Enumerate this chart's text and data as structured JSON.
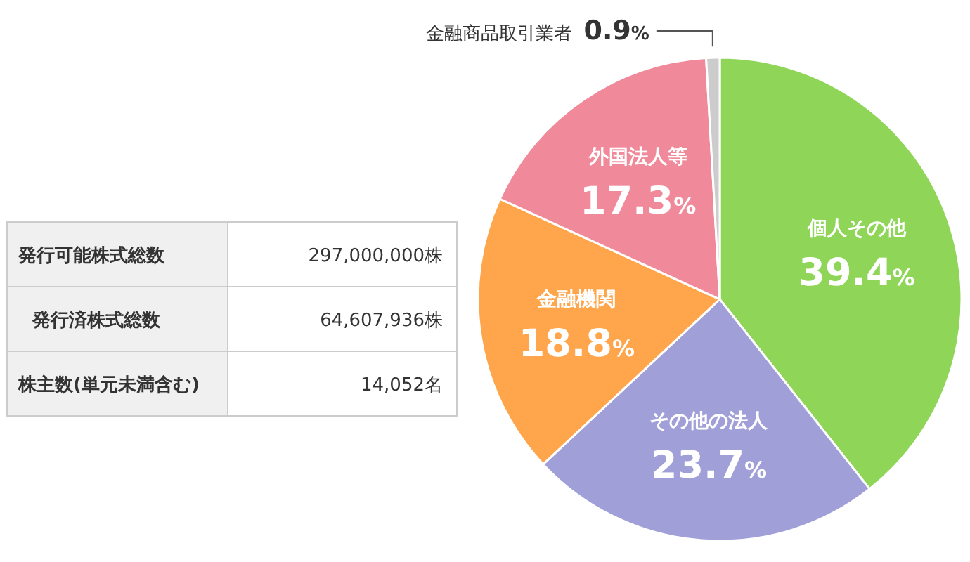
{
  "chart_data": [
    {
      "type": "pie",
      "categories": [
        "個人その他",
        "その他の法人",
        "金融機関",
        "外国法人等",
        "金融商品取引業者"
      ],
      "values": [
        39.4,
        23.7,
        18.8,
        17.3,
        0.9
      ],
      "colors": [
        "#8fd658",
        "#a09fd8",
        "#ffa64d",
        "#f08a9a",
        "#cccccc"
      ],
      "value_labels": [
        "39.4%",
        "23.7%",
        "18.8%",
        "17.3%",
        "0.9%"
      ]
    },
    {
      "type": "other",
      "categories": [
        "発行可能株式総数",
        "発行済株式総数",
        "株主数(単元未満含む)"
      ],
      "value_labels": [
        "297,000,000株",
        "64,607,936株",
        "14,052名"
      ]
    }
  ]
}
